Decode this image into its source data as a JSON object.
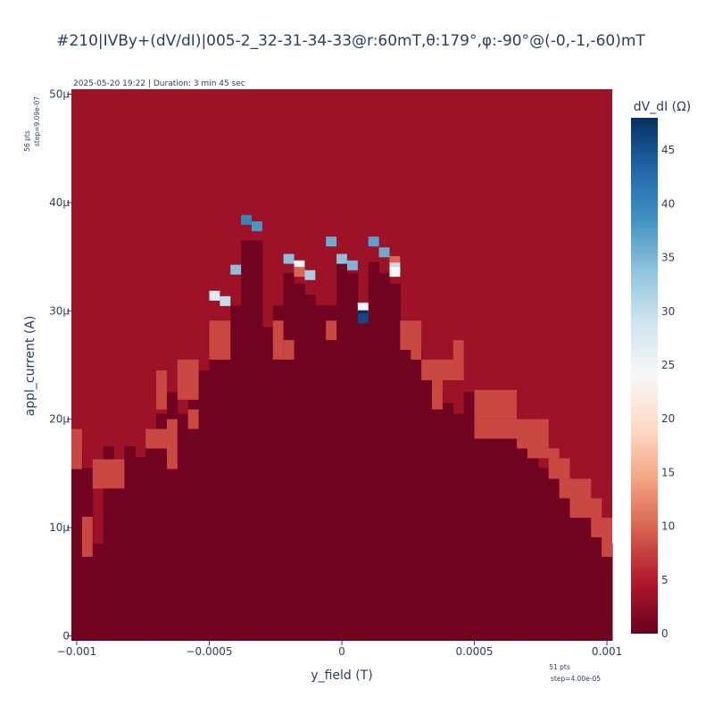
{
  "chart_data": {
    "type": "heatmap",
    "title": "#210|IVBy+(dV/dI)|005-2_32-31-34-33@r:60mT,θ:179°,φ:-90°@(-0,-1,-60)mT",
    "timestamp_text": "2025-05-20 19:22 | Duration: 3 min 45 sec",
    "xlabel": "y_field (T)",
    "ylabel": "appl_current (A)",
    "colorbar_title": "dV_dI (Ω)",
    "x_points_label": "51 pts",
    "x_step_label": "step=4.00e-05",
    "y_points_label": "56 pts",
    "y_step_label": "step=9.09e-07",
    "x_range": [
      -0.001,
      0.001
    ],
    "x_points": 51,
    "x_step": 4e-05,
    "y_range": [
      0,
      5e-05
    ],
    "y_points": 56,
    "y_step": 9.09e-07,
    "x_ticks": [
      {
        "value": -0.001,
        "label": "−0.001"
      },
      {
        "value": -0.0005,
        "label": "−0.0005"
      },
      {
        "value": 0,
        "label": "0"
      },
      {
        "value": 0.0005,
        "label": "0.0005"
      },
      {
        "value": 0.001,
        "label": "0.001"
      }
    ],
    "y_ticks": [
      {
        "value": 0,
        "label": "0"
      },
      {
        "value": 1e-05,
        "label": "10μ"
      },
      {
        "value": 2e-05,
        "label": "20μ"
      },
      {
        "value": 3e-05,
        "label": "30μ"
      },
      {
        "value": 4e-05,
        "label": "40μ"
      },
      {
        "value": 5e-05,
        "label": "50μ"
      }
    ],
    "z_range": [
      0,
      48
    ],
    "colorbar_ticks": [
      0,
      5,
      10,
      15,
      20,
      25,
      30,
      35,
      40,
      45
    ],
    "colorscale": "RdBu",
    "colorscale_stops": [
      "#67001f",
      "#b2182b",
      "#d6604d",
      "#f4a582",
      "#fddbc7",
      "#f7f7f7",
      "#d1e5f0",
      "#92c5de",
      "#4393c3",
      "#2166ac",
      "#053061"
    ],
    "values_description_levels": {
      "below_switch": 0.5,
      "normal_state": 3.5,
      "transition": 8
    },
    "switching_boundary_ua": [
      [
        -0.001,
        17.5
      ],
      [
        -0.00096,
        15.5
      ],
      [
        -0.00092,
        8.5
      ],
      [
        -0.00088,
        17.5
      ],
      [
        -0.00084,
        15.5
      ],
      [
        -0.0008,
        17.5
      ],
      [
        -0.00076,
        16.5
      ],
      [
        -0.00072,
        18.5
      ],
      [
        -0.00068,
        20.5
      ],
      [
        -0.00064,
        22.5
      ],
      [
        -0.0006,
        20.5
      ],
      [
        -0.00056,
        22.5
      ],
      [
        -0.00052,
        24.5
      ],
      [
        -0.00048,
        28.5
      ],
      [
        -0.00044,
        28.5
      ],
      [
        -0.0004,
        30.5
      ],
      [
        -0.00036,
        36.5
      ],
      [
        -0.00032,
        36.5
      ],
      [
        -0.00028,
        28.5
      ],
      [
        -0.00024,
        30.5
      ],
      [
        -0.0002,
        33.5
      ],
      [
        -0.00016,
        32.5
      ],
      [
        -0.00012,
        31.5
      ],
      [
        -8e-05,
        30.5
      ],
      [
        -4e-05,
        30.5
      ],
      [
        0,
        34.5
      ],
      [
        4e-05,
        33.5
      ],
      [
        8e-05,
        29.5
      ],
      [
        0.00012,
        34.5
      ],
      [
        0.00016,
        33.5
      ],
      [
        0.0002,
        32.5
      ],
      [
        0.00024,
        28.5
      ],
      [
        0.00028,
        26.5
      ],
      [
        0.00032,
        24.5
      ],
      [
        0.00036,
        22.5
      ],
      [
        0.0004,
        21.5
      ],
      [
        0.00044,
        20.5
      ],
      [
        0.00048,
        22.5
      ],
      [
        0.00052,
        20.5
      ],
      [
        0.00056,
        20.5
      ],
      [
        0.0006,
        19.5
      ],
      [
        0.00064,
        19.5
      ],
      [
        0.00068,
        18.5
      ],
      [
        0.00072,
        16.5
      ],
      [
        0.00076,
        15.5
      ],
      [
        0.0008,
        14.5
      ],
      [
        0.00084,
        13.5
      ],
      [
        0.00088,
        12.5
      ],
      [
        0.00092,
        11.5
      ],
      [
        0.00096,
        10.5
      ],
      [
        0.001,
        8.5
      ]
    ],
    "peaks": [
      {
        "x": -0.00048,
        "y_ua": 31.4,
        "value": 27
      },
      {
        "x": -0.00044,
        "y_ua": 30.9,
        "value": 30
      },
      {
        "x": -0.0004,
        "y_ua": 33.8,
        "value": 34
      },
      {
        "x": -0.00036,
        "y_ua": 38.4,
        "value": 40
      },
      {
        "x": -0.00032,
        "y_ua": 37.8,
        "value": 38
      },
      {
        "x": -0.0002,
        "y_ua": 34.8,
        "value": 34
      },
      {
        "x": -0.00016,
        "y_ua": 34.2,
        "value": 25
      },
      {
        "x": -0.00016,
        "y_ua": 33.6,
        "value": 10
      },
      {
        "x": -0.00012,
        "y_ua": 33.3,
        "value": 32
      },
      {
        "x": -4e-05,
        "y_ua": 36.4,
        "value": 36
      },
      {
        "x": 0,
        "y_ua": 34.8,
        "value": 34
      },
      {
        "x": 4e-05,
        "y_ua": 34.2,
        "value": 35
      },
      {
        "x": 8e-05,
        "y_ua": 30.3,
        "value": 24
      },
      {
        "x": 8e-05,
        "y_ua": 29.6,
        "value": 48
      },
      {
        "x": 8e-05,
        "y_ua": 29.3,
        "value": 46
      },
      {
        "x": 0.00012,
        "y_ua": 36.4,
        "value": 37
      },
      {
        "x": 0.00016,
        "y_ua": 35.4,
        "value": 36
      },
      {
        "x": 0.0002,
        "y_ua": 34.6,
        "value": 10
      },
      {
        "x": 0.0002,
        "y_ua": 34.0,
        "value": 30
      },
      {
        "x": 0.0002,
        "y_ua": 33.6,
        "value": 24
      }
    ],
    "transition_bands_ua": [
      {
        "x_from": -0.001,
        "x_to": -0.001,
        "y_from": 15.4,
        "y_to": 19.1
      },
      {
        "x_from": -0.00096,
        "x_to": -0.00096,
        "y_from": 7.3,
        "y_to": 11.0
      },
      {
        "x_from": -0.00092,
        "x_to": -0.00084,
        "y_from": 13.6,
        "y_to": 16.3
      },
      {
        "x_from": -0.00072,
        "x_to": -0.00068,
        "y_from": 17.3,
        "y_to": 19.1
      },
      {
        "x_from": -0.00068,
        "x_to": -0.00068,
        "y_from": 20.9,
        "y_to": 24.5
      },
      {
        "x_from": -0.00064,
        "x_to": -0.00064,
        "y_from": 15.4,
        "y_to": 20.0
      },
      {
        "x_from": -0.0006,
        "x_to": -0.00056,
        "y_from": 21.8,
        "y_to": 25.5
      },
      {
        "x_from": -0.00056,
        "x_to": -0.00056,
        "y_from": 19.1,
        "y_to": 20.9
      },
      {
        "x_from": -0.00048,
        "x_to": -0.00044,
        "y_from": 25.5,
        "y_to": 29.1
      },
      {
        "x_from": -0.00024,
        "x_to": -0.00024,
        "y_from": 25.5,
        "y_to": 29.1
      },
      {
        "x_from": -0.0002,
        "x_to": -0.0002,
        "y_from": 25.5,
        "y_to": 27.3
      },
      {
        "x_from": -4e-05,
        "x_to": -4e-05,
        "y_from": 27.3,
        "y_to": 29.1
      },
      {
        "x_from": 0.00024,
        "x_to": 0.00028,
        "y_from": 26.4,
        "y_to": 29.1
      },
      {
        "x_from": 0.00028,
        "x_to": 0.00028,
        "y_from": 25.5,
        "y_to": 26.4
      },
      {
        "x_from": 0.00032,
        "x_to": 0.00044,
        "y_from": 23.6,
        "y_to": 25.5
      },
      {
        "x_from": 0.00036,
        "x_to": 0.00036,
        "y_from": 20.9,
        "y_to": 23.6
      },
      {
        "x_from": 0.00044,
        "x_to": 0.00044,
        "y_from": 25.5,
        "y_to": 27.3
      },
      {
        "x_from": 0.00052,
        "x_to": 0.00064,
        "y_from": 20.0,
        "y_to": 22.7
      },
      {
        "x_from": 0.00052,
        "x_to": 0.00076,
        "y_from": 18.2,
        "y_to": 20.0
      },
      {
        "x_from": 0.00068,
        "x_to": 0.00076,
        "y_from": 17.3,
        "y_to": 18.2
      },
      {
        "x_from": 0.00072,
        "x_to": 0.0008,
        "y_from": 16.4,
        "y_to": 17.3
      },
      {
        "x_from": 0.0008,
        "x_to": 0.00084,
        "y_from": 14.5,
        "y_to": 16.4
      },
      {
        "x_from": 0.00084,
        "x_to": 0.00092,
        "y_from": 12.7,
        "y_to": 14.5
      },
      {
        "x_from": 0.00088,
        "x_to": 0.00096,
        "y_from": 10.9,
        "y_to": 12.7
      },
      {
        "x_from": 0.00096,
        "x_to": 0.001,
        "y_from": 9.1,
        "y_to": 10.9
      },
      {
        "x_from": 0.001,
        "x_to": 0.001,
        "y_from": 7.3,
        "y_to": 9.1
      }
    ]
  }
}
